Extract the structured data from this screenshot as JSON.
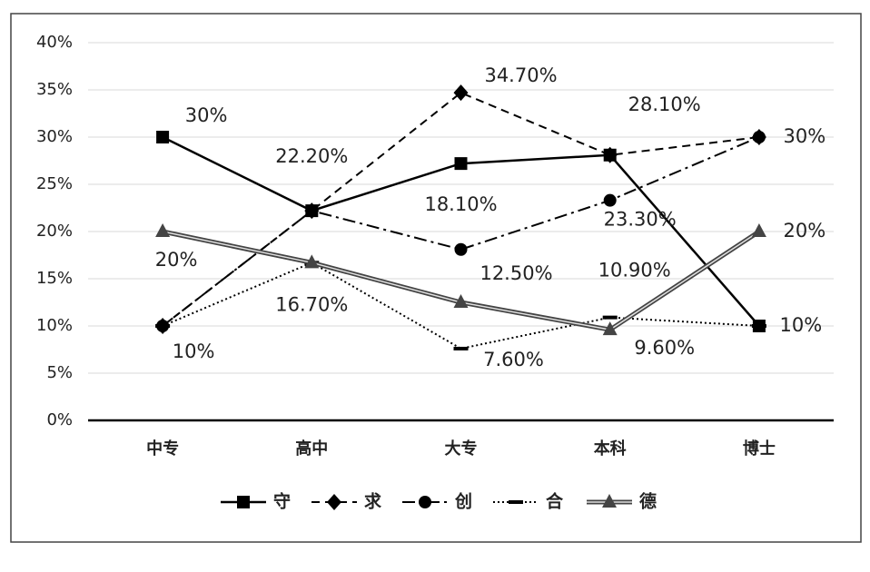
{
  "chart_data": {
    "type": "line",
    "categories": [
      "中专",
      "高中",
      "大专",
      "本科",
      "博士"
    ],
    "series": [
      {
        "name": "守",
        "color": "#000000",
        "values": [
          30,
          22.2,
          27.2,
          28.1,
          10
        ],
        "value_labels": [
          "30%",
          "22.20%",
          null,
          "28.10%",
          "10%"
        ]
      },
      {
        "name": "求",
        "color": "#000000",
        "values": [
          10,
          22.2,
          34.7,
          28.1,
          30
        ],
        "value_labels": [
          null,
          null,
          "34.70%",
          null,
          "30%"
        ]
      },
      {
        "name": "创",
        "color": "#000000",
        "values": [
          10,
          22.2,
          18.1,
          23.3,
          30
        ],
        "value_labels": [
          "10%",
          null,
          "18.10%",
          "23.30%",
          null
        ]
      },
      {
        "name": "合",
        "color": "#000000",
        "values": [
          10,
          16.7,
          7.6,
          10.9,
          10
        ],
        "value_labels": [
          null,
          "16.70%",
          "7.60%",
          "10.90%",
          null
        ]
      },
      {
        "name": "德",
        "color": "#444444",
        "values": [
          20,
          16.7,
          12.5,
          9.6,
          20
        ],
        "value_labels": [
          "20%",
          null,
          "12.50%",
          "9.60%",
          "20%"
        ]
      }
    ],
    "ylim": [
      0,
      40
    ],
    "yticks": [
      {
        "value": 0,
        "label": "0%"
      },
      {
        "value": 5,
        "label": "5%"
      },
      {
        "value": 10,
        "label": "10%"
      },
      {
        "value": 15,
        "label": "15%"
      },
      {
        "value": 20,
        "label": "20%"
      },
      {
        "value": 25,
        "label": "25%"
      },
      {
        "value": 30,
        "label": "30%"
      },
      {
        "value": 35,
        "label": "35%"
      },
      {
        "value": 40,
        "label": "40%"
      }
    ],
    "grid": true,
    "legend": "bottom"
  }
}
